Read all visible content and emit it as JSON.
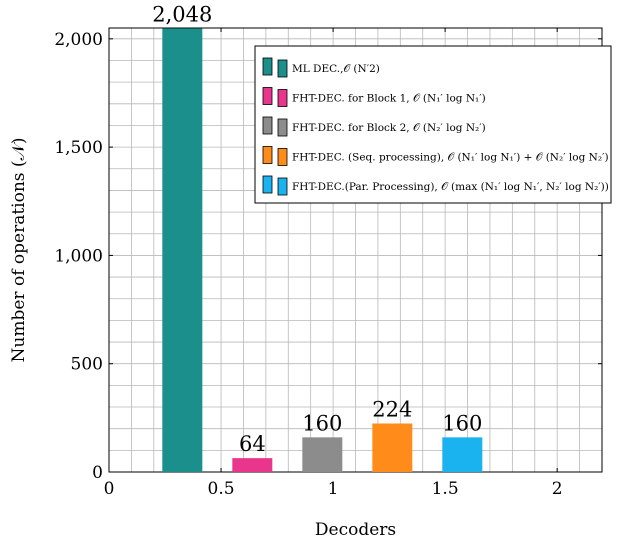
{
  "chart_data": {
    "type": "bar",
    "xlabel": "Decoders",
    "ylabel": "Number of operations (𝒩)",
    "xlim": [
      0,
      2.2
    ],
    "ylim": [
      0,
      2050
    ],
    "x_ticks": [
      0,
      0.5,
      1,
      1.5,
      2
    ],
    "x_tick_labels": [
      "0",
      "0.5",
      "1",
      "1.5",
      "2"
    ],
    "y_ticks": [
      0,
      500,
      1000,
      1500,
      2000
    ],
    "y_tick_labels": [
      "0",
      "500",
      "1,000",
      "1,500",
      "2,000"
    ],
    "grid": true,
    "legend_position": "top-right",
    "series": [
      {
        "name": "ML DEC., O(N'^2)",
        "legend_label": "ML DEC.,𝒪 (N′2)",
        "x": 0.47,
        "value": 2048,
        "value_label": "2,048",
        "color": "#1b8f8b"
      },
      {
        "name": "FHT-DEC. for Block 1",
        "legend_label": "FHT-DEC. for Block 1, 𝒪 (N₁′ log N₁′)",
        "x": 0.47,
        "value": 64,
        "value_label": "64",
        "color": "#e8368c"
      },
      {
        "name": "FHT-DEC. for Block 2",
        "legend_label": "FHT-DEC. for Block 2, 𝒪 (N₂′ log N₂′)",
        "x": 0.47,
        "value": 160,
        "value_label": "160",
        "color": "#8c8c8c"
      },
      {
        "name": "FHT-DEC. (Seq. processing)",
        "legend_label": "FHT-DEC. (Seq. processing), 𝒪 (N₁′ log N₁′) + 𝒪 (N₂′ log N₂′)",
        "x": 0.47,
        "value": 224,
        "value_label": "224",
        "color": "#ff8c1a"
      },
      {
        "name": "FHT-DEC. (Par. Processing)",
        "legend_label": "FHT-DEC.(Par. Processing), 𝒪 (max (N₁′ log N₁′, N₂′ log N₂′))",
        "x": 0.47,
        "value": 160,
        "value_label": "160",
        "color": "#1ab2ef"
      }
    ]
  }
}
